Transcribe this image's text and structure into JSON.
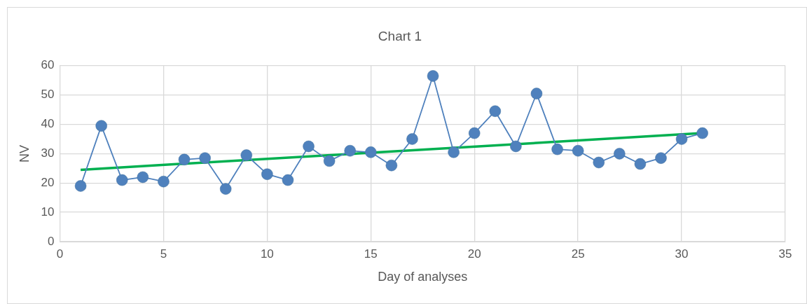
{
  "chart_data": {
    "type": "line",
    "title": "Chart 1",
    "xlabel": "Day of analyses",
    "ylabel": "NV",
    "x": [
      1,
      2,
      3,
      4,
      5,
      6,
      7,
      8,
      9,
      10,
      11,
      12,
      13,
      14,
      15,
      16,
      17,
      18,
      19,
      20,
      21,
      22,
      23,
      24,
      25,
      26,
      27,
      28,
      29,
      30,
      31
    ],
    "series": [
      {
        "color": "#4f81bd",
        "marker": "circle",
        "values": [
          19,
          39.5,
          21,
          22,
          20.5,
          28,
          28.5,
          18,
          29.5,
          23,
          21,
          32.5,
          27.5,
          31,
          30.5,
          26,
          35,
          56.5,
          30.5,
          37,
          44.5,
          32.5,
          50.5,
          31.5,
          31,
          27,
          30,
          26.5,
          28.5,
          35,
          37
        ]
      },
      {
        "type": "line",
        "color": "#00b050",
        "marker": "none",
        "x": [
          1,
          31
        ],
        "values": [
          24.5,
          37
        ]
      }
    ],
    "xlim": [
      0,
      35
    ],
    "xticks": [
      0,
      5,
      10,
      15,
      20,
      25,
      30,
      35
    ],
    "ylim": [
      0,
      60
    ],
    "yticks": [
      0,
      10,
      20,
      30,
      40,
      50,
      60
    ],
    "grid": true,
    "legend": false
  }
}
